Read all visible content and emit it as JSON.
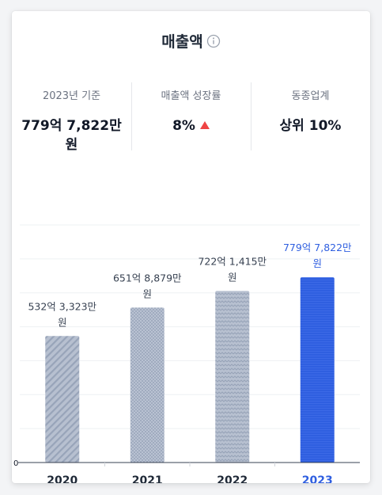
{
  "header": {
    "title": "매출액",
    "info_icon": "info-circle-icon"
  },
  "stats": [
    {
      "label": "2023년 기준",
      "value": "779억 7,822만 원"
    },
    {
      "label": "매출액 성장률",
      "value": "8%",
      "trend": "up",
      "trend_color": "#ef4444"
    },
    {
      "label": "동종업계",
      "value": "상위 10%"
    }
  ],
  "chart_data": {
    "type": "bar",
    "categories": [
      "2020",
      "2021",
      "2022",
      "2023"
    ],
    "values": [
      532.3323,
      651.8879,
      722.1415,
      779.7822
    ],
    "data_labels": [
      "532억 3,323만 원",
      "651억 8,879만 원",
      "722억 1,415만 원",
      "779억 7,822만 원"
    ],
    "highlight_index": 3,
    "y_tick_labels": [
      "0"
    ],
    "colors": {
      "bar": "#aab4c6",
      "highlight": "#2f5fe0",
      "highlight_text": "#2f5fe0",
      "axis_text": "#1f2937"
    },
    "grid": true,
    "ylim": [
      0,
      1000
    ]
  }
}
